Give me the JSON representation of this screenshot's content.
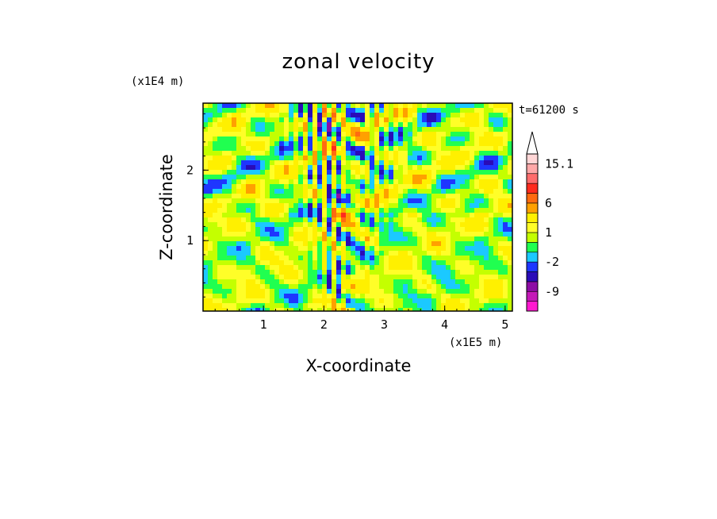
{
  "chart_data": {
    "type": "heatmap",
    "title": "zonal velocity",
    "xlabel": "X-coordinate",
    "ylabel": "Z-coordinate",
    "x_unit": "(x1E5 m)",
    "y_unit": "(x1E4 m)",
    "time_label": "t=61200 s",
    "xlim": [
      0,
      5.12
    ],
    "ylim": [
      0,
      2.95
    ],
    "x_ticks": [
      1,
      2,
      3,
      4,
      5
    ],
    "y_ticks": [
      1,
      2
    ],
    "colorbar": {
      "levels": [
        -15,
        -12,
        -9,
        -6,
        -3,
        -2,
        -1,
        0,
        1,
        2,
        4,
        6,
        8,
        10,
        12,
        15.1
      ],
      "colors": [
        "#ff19cf",
        "#c519b8",
        "#8d0da5",
        "#2a0bb8",
        "#1e36ff",
        "#1bc9ff",
        "#20ff50",
        "#c4ff00",
        "#fffe28",
        "#fff000",
        "#ffa000",
        "#ff6a10",
        "#ff2b1e",
        "#ff6c6c",
        "#ffa8a8",
        "#ffd6d6"
      ],
      "tick_labels": [
        "15.1",
        "6",
        "1",
        "-2",
        "-9"
      ],
      "tick_values": [
        15.1,
        6,
        1,
        -2,
        -9
      ],
      "extend": "max"
    }
  }
}
